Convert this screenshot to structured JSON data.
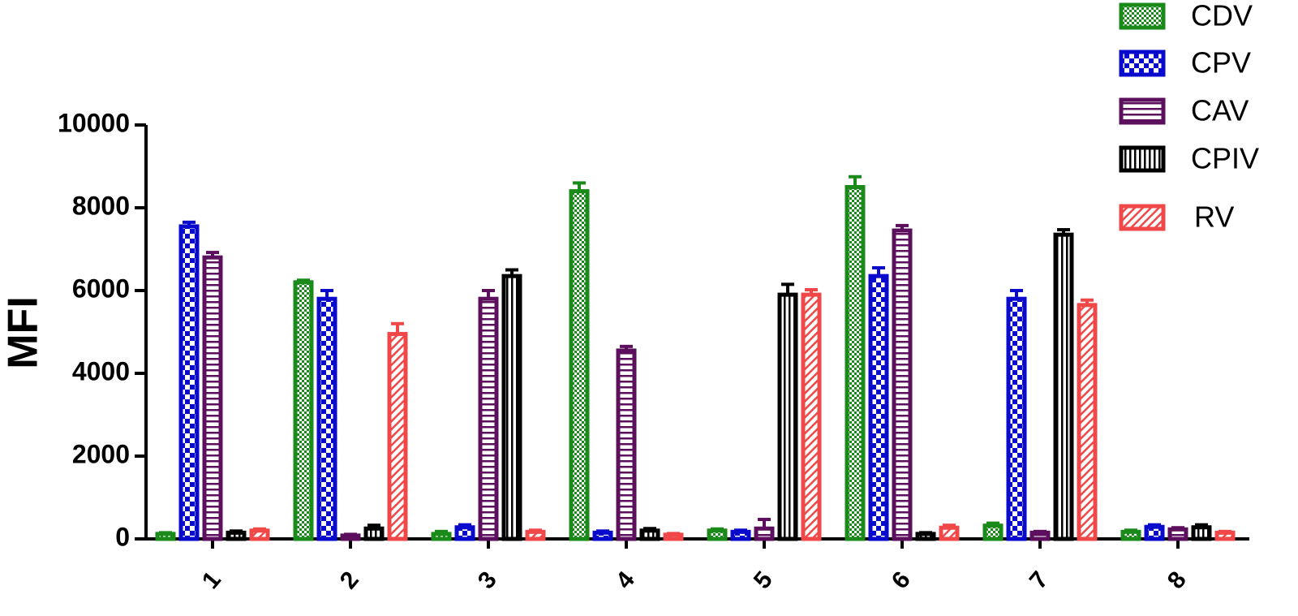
{
  "chart_data": {
    "type": "bar",
    "y_label": "MFI",
    "categories": [
      "1",
      "2",
      "3",
      "4",
      "5",
      "6",
      "7",
      "8"
    ],
    "ylim": [
      0,
      10000
    ],
    "yticks": [
      0,
      2000,
      4000,
      6000,
      8000,
      10000
    ],
    "series": [
      {
        "name": "CDV",
        "color": "#1a8a1a",
        "pattern": "fine-checker",
        "values": [
          120,
          6200,
          120,
          8400,
          200,
          8500,
          320,
          170
        ],
        "errors": [
          30,
          50,
          60,
          200,
          40,
          250,
          60,
          40
        ]
      },
      {
        "name": "CPV",
        "color": "#0a0acc",
        "pattern": "checker",
        "values": [
          7550,
          5800,
          280,
          150,
          170,
          6350,
          5800,
          290
        ],
        "errors": [
          100,
          200,
          60,
          40,
          40,
          200,
          200,
          50
        ]
      },
      {
        "name": "CAV",
        "color": "#5c0f5c",
        "pattern": "horizontal",
        "values": [
          6800,
          80,
          5800,
          4550,
          250,
          7450,
          150,
          230
        ],
        "errors": [
          120,
          30,
          200,
          100,
          220,
          120,
          30,
          40
        ]
      },
      {
        "name": "CPIV",
        "color": "#000000",
        "pattern": "vertical",
        "values": [
          150,
          250,
          6350,
          200,
          5900,
          120,
          7350,
          280
        ],
        "errors": [
          40,
          80,
          150,
          50,
          250,
          30,
          120,
          60
        ]
      },
      {
        "name": "RV",
        "color": "#f04848",
        "pattern": "diagonal",
        "values": [
          200,
          4950,
          170,
          100,
          5900,
          270,
          5650,
          150
        ],
        "errors": [
          40,
          250,
          40,
          30,
          120,
          60,
          120,
          30
        ]
      }
    ]
  }
}
